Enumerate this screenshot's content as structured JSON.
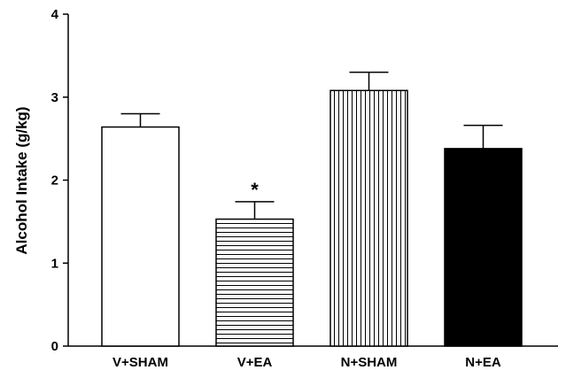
{
  "chart_data": {
    "type": "bar",
    "title": "",
    "xlabel": "",
    "ylabel": "Alcohol Intake (g/kg)",
    "ylim": [
      0,
      4
    ],
    "yticks": [
      0,
      1,
      2,
      3,
      4
    ],
    "grid": false,
    "categories": [
      "V+SHAM",
      "V+EA",
      "N+SHAM",
      "N+EA"
    ],
    "values": [
      2.64,
      1.53,
      3.08,
      2.38
    ],
    "errors": [
      0.16,
      0.21,
      0.22,
      0.28
    ],
    "fills": [
      "white",
      "horizontal-stripes",
      "vertical-stripes",
      "black"
    ],
    "annotations": [
      {
        "category": "V+EA",
        "text": "*"
      }
    ],
    "colors": {
      "bar_fill_solid": "#000000",
      "bar_fill_open": "#ffffff",
      "stroke": "#000000"
    }
  }
}
